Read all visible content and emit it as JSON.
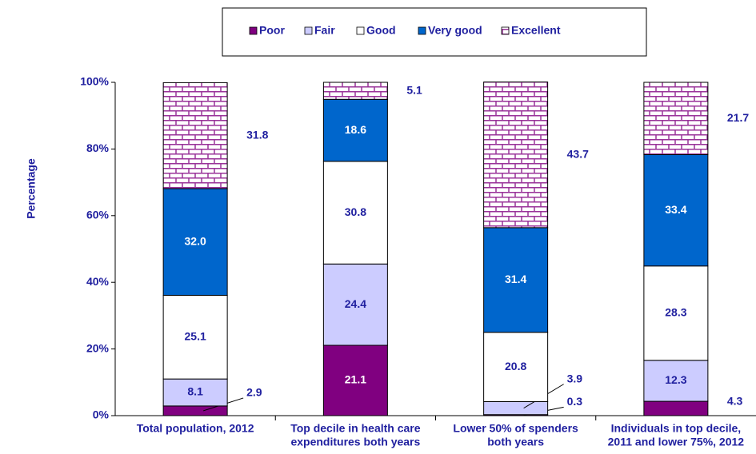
{
  "chart_data": {
    "type": "stacked_bar",
    "y_label": "Percentage",
    "categories": [
      [
        "Total population, 2012"
      ],
      [
        "Top decile in health care",
        "expenditures both years"
      ],
      [
        "Lower 50% of spenders",
        "both years"
      ],
      [
        "Individuals in top decile,",
        "2011 and lower 75%, 2012"
      ]
    ],
    "series": [
      {
        "name": "Poor",
        "color": "#800080",
        "values": [
          2.9,
          21.1,
          0.3,
          4.3
        ],
        "value_labels": [
          "2.9",
          "21.1",
          "0.3",
          "4.3"
        ]
      },
      {
        "name": "Fair",
        "color": "#ccccff",
        "values": [
          8.1,
          24.4,
          3.9,
          12.3
        ],
        "value_labels": [
          "8.1",
          "24.4",
          "3.9",
          "12.3"
        ]
      },
      {
        "name": "Good",
        "color": "#ffffff",
        "values": [
          25.1,
          30.8,
          20.8,
          28.3
        ],
        "value_labels": [
          "25.1",
          "30.8",
          "20.8",
          "28.3"
        ]
      },
      {
        "name": "Very good",
        "color": "#0066cc",
        "values": [
          32.0,
          18.6,
          31.4,
          33.4
        ],
        "value_labels": [
          "32.0",
          "18.6",
          "31.4",
          "33.4"
        ]
      },
      {
        "name": "Excellent",
        "color": "#993399",
        "pattern": "brick",
        "values": [
          31.8,
          5.1,
          43.7,
          21.7
        ],
        "value_labels": [
          "31.8",
          "5.1",
          "43.7",
          "21.7"
        ]
      }
    ],
    "ylim": [
      0,
      100
    ],
    "yticks": [
      {
        "value": 0,
        "label": "0%"
      },
      {
        "value": 20,
        "label": "20%"
      },
      {
        "value": 40,
        "label": "40%"
      },
      {
        "value": 60,
        "label": "60%"
      },
      {
        "value": 80,
        "label": "80%"
      },
      {
        "value": 100,
        "label": "100%"
      }
    ],
    "legend": "top"
  }
}
